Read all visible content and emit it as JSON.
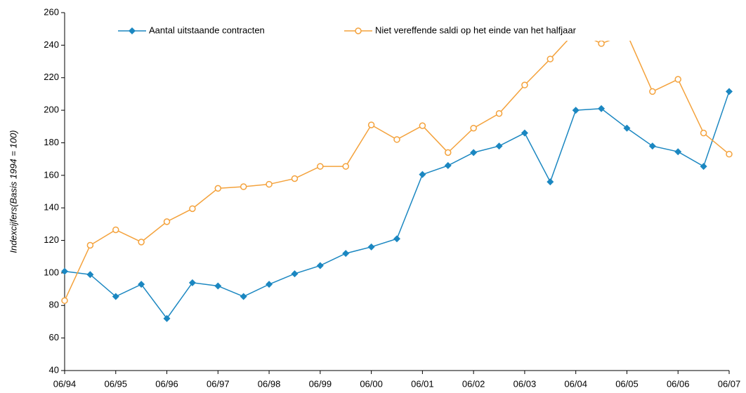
{
  "chart_data": {
    "type": "line",
    "y_label": "Indexcijfers(Basis 1994 = 100)",
    "categories": [
      "06/94",
      null,
      "06/95",
      null,
      "06/96",
      null,
      "06/97",
      null,
      "06/98",
      null,
      "06/99",
      null,
      "06/00",
      null,
      "06/01",
      null,
      "06/02",
      null,
      "06/03",
      null,
      "06/04",
      null,
      "06/05",
      null,
      "06/06",
      null,
      "06/07"
    ],
    "series": [
      {
        "name": "Aantal uitstaande contracten",
        "color": "#1b87c1",
        "marker": "diamond",
        "values": [
          101,
          99,
          85.5,
          93,
          72,
          94,
          92,
          85.5,
          93,
          99.5,
          104.5,
          112,
          116,
          121,
          160.5,
          166,
          174,
          178,
          186,
          156,
          200,
          201,
          189,
          178,
          174.5,
          165.5,
          211.5
        ]
      },
      {
        "name": "Niet vereffende saldi op het einde van het halfjaar",
        "color": "#f4a23c",
        "marker": "circle",
        "values": [
          83,
          117,
          126.5,
          119,
          131.5,
          139.5,
          152,
          153,
          154.5,
          158,
          165.5,
          165.5,
          191,
          182,
          190.5,
          174,
          189,
          198,
          215.5,
          231.5,
          248.5,
          241,
          247,
          211.5,
          219,
          186,
          173
        ]
      }
    ],
    "ylim": [
      40,
      260
    ],
    "yticks": [
      40,
      60,
      80,
      100,
      120,
      140,
      160,
      180,
      200,
      220,
      240,
      260
    ],
    "grid": false,
    "legend": "top"
  }
}
